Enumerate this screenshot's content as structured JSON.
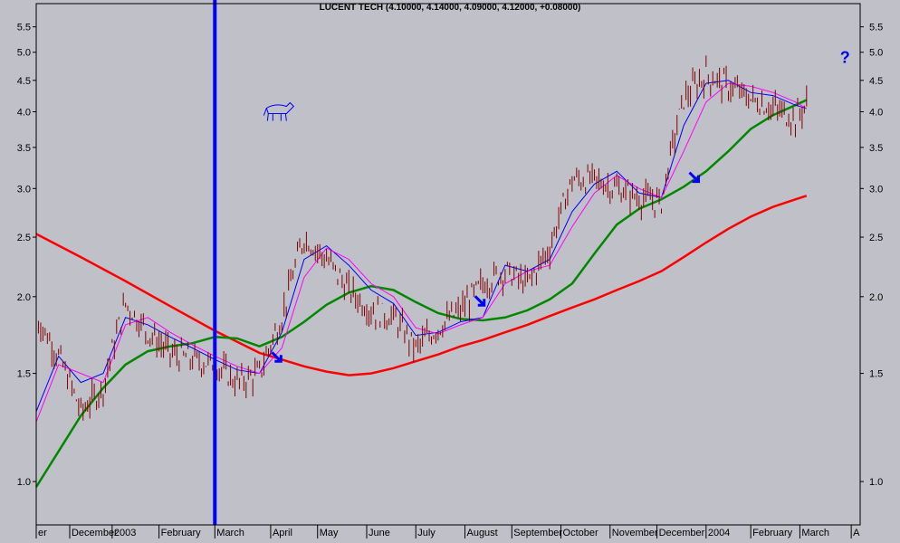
{
  "chart_data": {
    "type": "line",
    "title": "LUCENT TECH (4.10000, 4.14000, 4.09000, 4.12000, +0.08000)",
    "y_scale": "log",
    "ylim": [
      0.85,
      5.8
    ],
    "y_ticks": [
      "5.5",
      "5.0",
      "4.5",
      "4.0",
      "3.5",
      "3.0",
      "2.5",
      "2.0",
      "1.5",
      "1.0"
    ],
    "y_tick_values": [
      5.5,
      5.0,
      4.5,
      4.0,
      3.5,
      3.0,
      2.5,
      2.0,
      1.5,
      1.0
    ],
    "x_labels": [
      "er",
      "December",
      "2003",
      "February",
      "March",
      "April",
      "May",
      "June",
      "July",
      "August",
      "September",
      "October",
      "November",
      "December",
      "2004",
      "February",
      "March",
      "A"
    ],
    "x_label_index": [
      0,
      15,
      34,
      55,
      80,
      105,
      126,
      148,
      170,
      192,
      213,
      235,
      257,
      278,
      300,
      320,
      342,
      365
    ],
    "x_count": 370,
    "series": [
      {
        "color": "#ff0000",
        "x": [
          0,
          20,
          40,
          60,
          80,
          100,
          110,
          120,
          130,
          140,
          150,
          160,
          170,
          180,
          190,
          200,
          210,
          220,
          230,
          240,
          250,
          260,
          270,
          280,
          290,
          300,
          310,
          320,
          330,
          340,
          345
        ],
        "values": [
          2.53,
          2.32,
          2.12,
          1.93,
          1.76,
          1.62,
          1.58,
          1.54,
          1.51,
          1.49,
          1.5,
          1.53,
          1.57,
          1.61,
          1.66,
          1.7,
          1.75,
          1.8,
          1.86,
          1.92,
          1.98,
          2.05,
          2.12,
          2.2,
          2.32,
          2.45,
          2.58,
          2.7,
          2.8,
          2.88,
          2.92
        ]
      },
      {
        "color": "#008800",
        "x": [
          0,
          10,
          20,
          30,
          40,
          50,
          60,
          70,
          80,
          90,
          100,
          110,
          120,
          130,
          140,
          150,
          160,
          170,
          180,
          190,
          200,
          210,
          220,
          230,
          240,
          250,
          260,
          270,
          280,
          290,
          300,
          310,
          320,
          330,
          340,
          345
        ],
        "values": [
          0.98,
          1.12,
          1.28,
          1.42,
          1.55,
          1.63,
          1.66,
          1.68,
          1.72,
          1.71,
          1.66,
          1.72,
          1.82,
          1.94,
          2.03,
          2.08,
          2.05,
          1.96,
          1.88,
          1.84,
          1.83,
          1.85,
          1.9,
          1.98,
          2.1,
          2.35,
          2.62,
          2.78,
          2.88,
          3.02,
          3.2,
          3.45,
          3.75,
          3.95,
          4.1,
          4.18
        ]
      },
      {
        "color": "#0000ff",
        "x": [
          0,
          10,
          20,
          30,
          40,
          50,
          60,
          70,
          80,
          90,
          100,
          110,
          120,
          130,
          140,
          150,
          160,
          170,
          180,
          190,
          200,
          210,
          220,
          230,
          240,
          250,
          260,
          270,
          280,
          290,
          300,
          310,
          320,
          330,
          340,
          345
        ],
        "values": [
          1.3,
          1.6,
          1.45,
          1.5,
          1.85,
          1.8,
          1.72,
          1.65,
          1.58,
          1.52,
          1.5,
          1.75,
          2.3,
          2.42,
          2.25,
          2.05,
          1.95,
          1.73,
          1.75,
          1.82,
          1.85,
          2.25,
          2.2,
          2.3,
          2.75,
          3.05,
          3.2,
          2.95,
          2.9,
          3.8,
          4.45,
          4.5,
          4.3,
          4.25,
          4.1,
          4.05
        ]
      },
      {
        "color": "#ff00ff",
        "x": [
          0,
          10,
          20,
          30,
          40,
          50,
          60,
          70,
          80,
          90,
          100,
          110,
          120,
          130,
          140,
          150,
          160,
          170,
          180,
          190,
          200,
          210,
          220,
          230,
          240,
          250,
          260,
          270,
          280,
          290,
          300,
          310,
          320,
          330,
          340,
          345
        ],
        "values": [
          1.25,
          1.55,
          1.5,
          1.45,
          1.8,
          1.85,
          1.75,
          1.67,
          1.6,
          1.54,
          1.5,
          1.65,
          2.15,
          2.4,
          2.3,
          2.1,
          2.0,
          1.78,
          1.74,
          1.8,
          1.85,
          2.1,
          2.2,
          2.25,
          2.6,
          2.95,
          3.15,
          3.0,
          2.9,
          3.45,
          4.15,
          4.45,
          4.4,
          4.3,
          4.15,
          4.05
        ]
      }
    ],
    "price_bars": {
      "color": "#800000",
      "x": [
        0,
        10,
        20,
        30,
        40,
        50,
        60,
        70,
        80,
        90,
        100,
        110,
        120,
        130,
        140,
        150,
        160,
        170,
        180,
        190,
        200,
        210,
        220,
        230,
        240,
        250,
        260,
        270,
        280,
        290,
        300,
        310,
        320,
        330,
        340,
        345
      ],
      "values": [
        1.85,
        1.6,
        1.3,
        1.42,
        1.95,
        1.75,
        1.62,
        1.58,
        1.55,
        1.45,
        1.5,
        1.85,
        2.5,
        2.3,
        2.05,
        1.9,
        1.85,
        1.65,
        1.78,
        1.9,
        2.1,
        2.2,
        2.1,
        2.4,
        3.1,
        3.1,
        3.0,
        2.9,
        2.85,
        4.2,
        4.6,
        4.4,
        4.2,
        4.05,
        3.9,
        4.12
      ]
    },
    "annotations": [
      {
        "type": "vline",
        "x": 80,
        "color": "#0000ff"
      },
      {
        "type": "arrow",
        "x": 108,
        "value": 1.58,
        "color": "#0000ff"
      },
      {
        "type": "arrow",
        "x": 199,
        "value": 1.95,
        "color": "#0000ff"
      },
      {
        "type": "arrow",
        "x": 295,
        "value": 3.1,
        "color": "#0000ff"
      },
      {
        "type": "text",
        "text": "?",
        "x": 360,
        "value": 4.9,
        "color": "#0000ff"
      },
      {
        "type": "icon",
        "icon": "bull-icon",
        "x": 108,
        "value": 4.0,
        "color": "#0000ff"
      }
    ]
  }
}
